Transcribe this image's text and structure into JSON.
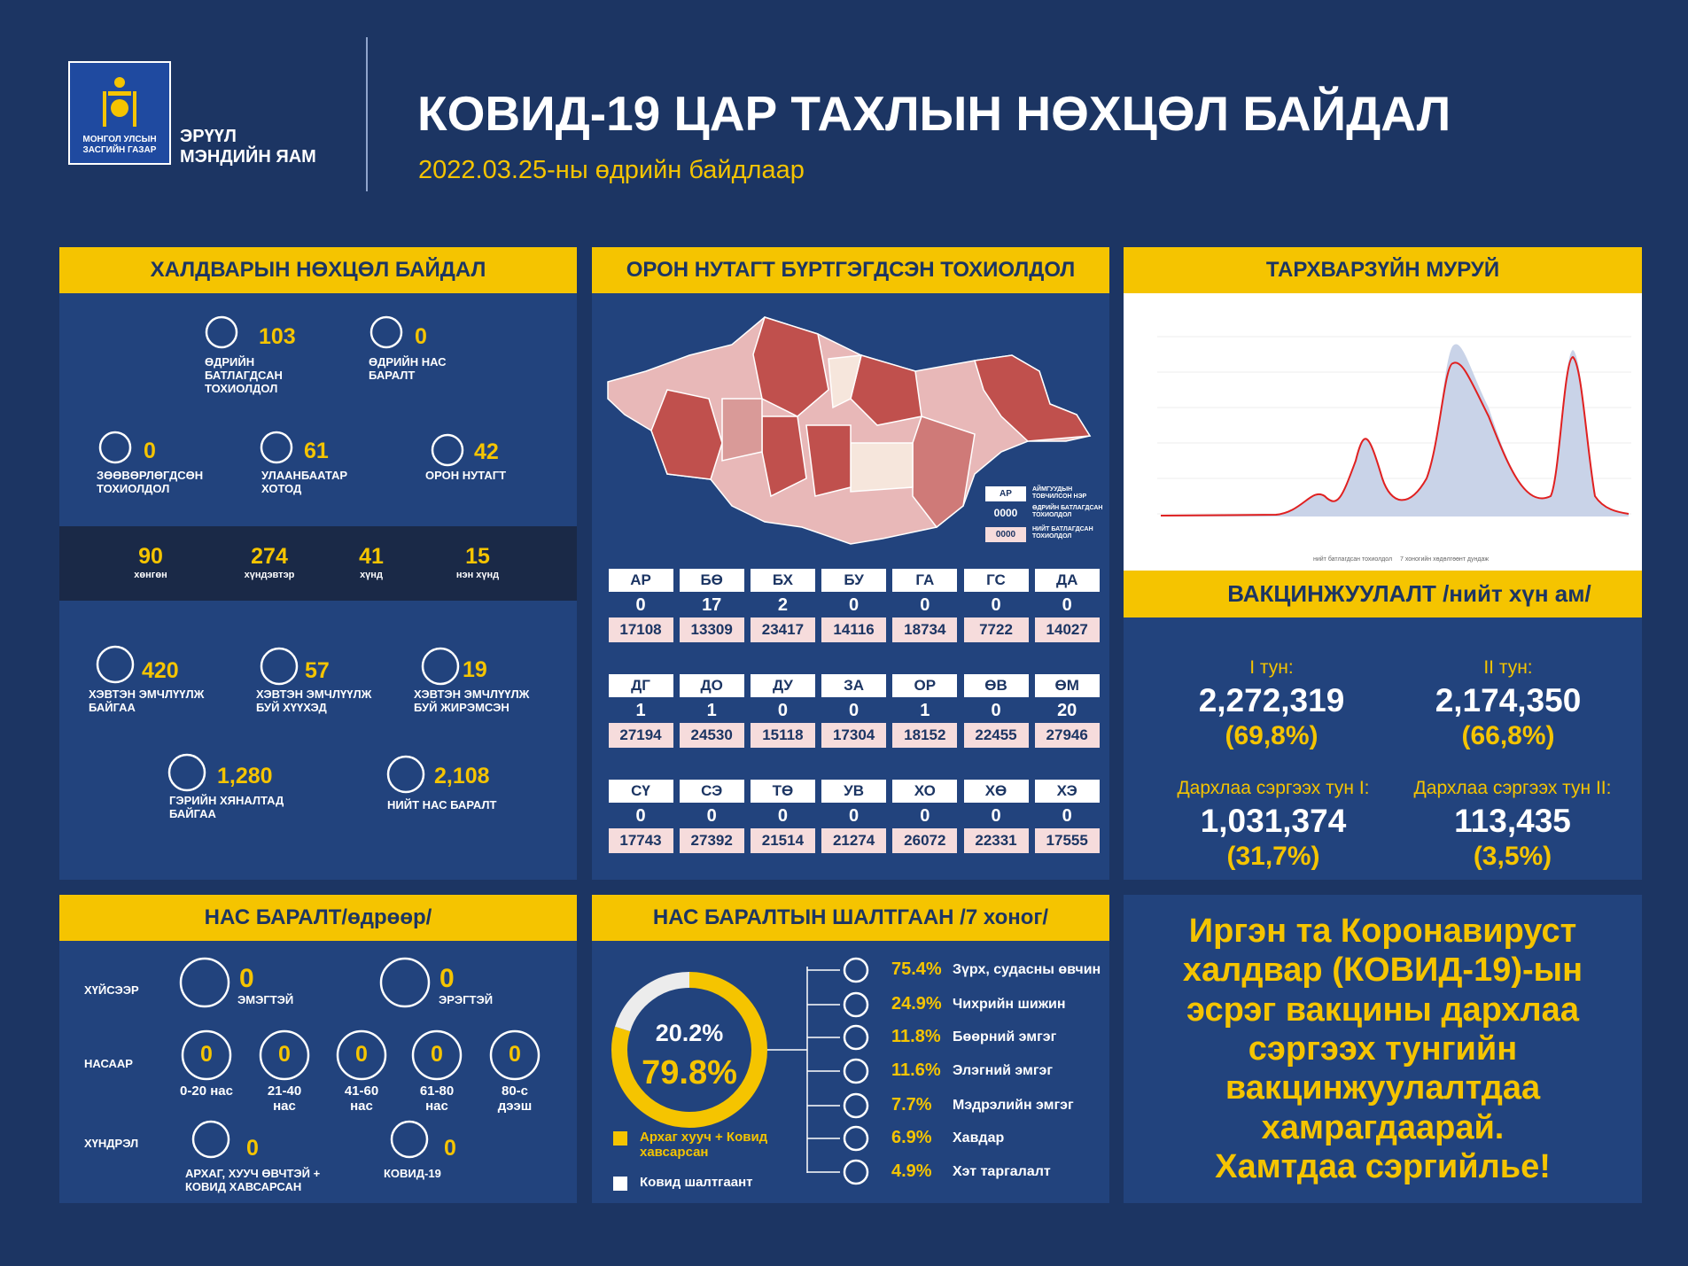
{
  "header": {
    "logo_text": "МОНГОЛ УЛСЫН\nЗАСГИЙН ГАЗАР",
    "ministry": "ЭРҮҮЛ\nМЭНДИЙН ЯАМ",
    "title": "КОВИД-19 ЦАР ТАХЛЫН НӨХЦӨЛ БАЙДАЛ",
    "subtitle": "2022.03.25-ны өдрийн байдлаар"
  },
  "infection": {
    "title": "ХАЛДВАРЫН НӨХЦӨЛ БАЙДАЛ",
    "stats": [
      {
        "value": 103,
        "label": "ӨДРИЙН\nБАТЛАГДСАН\nТОХИОЛДОЛ"
      },
      {
        "value": 0,
        "label": "ӨДРИЙН НАС\nБАРАЛТ"
      },
      {
        "value": 0,
        "label": "ЗӨӨВӨРЛӨГДСӨН\nТОХИОЛДОЛ"
      },
      {
        "value": 61,
        "label": "УЛААНБААТАР\nХОТОД"
      },
      {
        "value": 42,
        "label": "ОРОН НУТАГТ"
      }
    ],
    "severity": [
      {
        "value": 90,
        "label": "хөнгөн"
      },
      {
        "value": 274,
        "label": "хүндэвтэр"
      },
      {
        "value": 41,
        "label": "хүнд"
      },
      {
        "value": 15,
        "label": "нэн хүнд"
      }
    ],
    "care": [
      {
        "value": 420,
        "label": "ХЭВТЭН ЭМЧЛҮҮЛЖ\nБАЙГАА"
      },
      {
        "value": 57,
        "label": "ХЭВТЭН ЭМЧЛҮҮЛЖ\nБУЙ ХҮҮХЭД"
      },
      {
        "value": 19,
        "label": "ХЭВТЭН ЭМЧЛҮҮЛЖ\nБУЙ ЖИРЭМСЭН"
      },
      {
        "value": "1,280",
        "label": "ГЭРИЙН ХЯНАЛТАД\nБАЙГАА"
      },
      {
        "value": "2,108",
        "label": "НИЙТ НАС БАРАЛТ"
      }
    ]
  },
  "provinces": {
    "title": "ОРОН НУТАГТ БҮРТГЭГДСЭН ТОХИОЛДОЛ",
    "legend": {
      "code": "АР",
      "code_label": "АЙМГУУДЫН\nТОВЧИЛСОН НЭР",
      "daily": "0000",
      "daily_label": "ӨДРИЙН БАТЛАГДСАН\nТОХИОЛДОЛ",
      "total": "0000",
      "total_label": "НИЙТ БАТЛАГДСАН\nТОХИОЛДОЛ"
    },
    "rows": [
      [
        {
          "code": "АР",
          "daily": 0,
          "total": 17108
        },
        {
          "code": "БӨ",
          "daily": 17,
          "total": 13309
        },
        {
          "code": "БХ",
          "daily": 2,
          "total": 23417
        },
        {
          "code": "БУ",
          "daily": 0,
          "total": 14116
        },
        {
          "code": "ГА",
          "daily": 0,
          "total": 18734
        },
        {
          "code": "ГС",
          "daily": 0,
          "total": 7722
        },
        {
          "code": "ДА",
          "daily": 0,
          "total": 14027
        }
      ],
      [
        {
          "code": "ДГ",
          "daily": 1,
          "total": 27194
        },
        {
          "code": "ДО",
          "daily": 1,
          "total": 24530
        },
        {
          "code": "ДУ",
          "daily": 0,
          "total": 15118
        },
        {
          "code": "ЗА",
          "daily": 0,
          "total": 17304
        },
        {
          "code": "ОР",
          "daily": 1,
          "total": 18152
        },
        {
          "code": "ӨВ",
          "daily": 0,
          "total": 22455
        },
        {
          "code": "ӨМ",
          "daily": 20,
          "total": 27946
        }
      ],
      [
        {
          "code": "СҮ",
          "daily": 0,
          "total": 17743
        },
        {
          "code": "СЭ",
          "daily": 0,
          "total": 27392
        },
        {
          "code": "ТӨ",
          "daily": 0,
          "total": 21514
        },
        {
          "code": "УВ",
          "daily": 0,
          "total": 21274
        },
        {
          "code": "ХО",
          "daily": 0,
          "total": 26072
        },
        {
          "code": "ХӨ",
          "daily": 0,
          "total": 22331
        },
        {
          "code": "ХЭ",
          "daily": 0,
          "total": 17555
        }
      ]
    ]
  },
  "epi_curve": {
    "title": "ТАРХВАРЗҮЙН МУРУЙ",
    "legend": [
      "нийт батлагдсан тохиолдол",
      "7 хоногийн хөдөлгөөнт дундаж"
    ]
  },
  "vaccination": {
    "title": "ВАКЦИНЖУУЛАЛТ /нийт хүн ам/",
    "doses": [
      {
        "label": "I тун:",
        "value": "2,272,319",
        "percent": "(69,8%)"
      },
      {
        "label": "II тун:",
        "value": "2,174,350",
        "percent": "(66,8%)"
      },
      {
        "label": "Дархлаа сэргээх тун I:",
        "value": "1,031,374",
        "percent": "(31,7%)"
      },
      {
        "label": "Дархлаа сэргээх тун II:",
        "value": "113,435",
        "percent": "(3,5%)"
      }
    ]
  },
  "deaths": {
    "title": "НАС БАРАЛТ/өдрөөр/",
    "gender": {
      "label": "ХҮЙСЭЭР",
      "items": [
        {
          "value": 0,
          "label": "ЭМЭГТЭЙ"
        },
        {
          "value": 0,
          "label": "ЭРЭГТЭЙ"
        }
      ]
    },
    "age": {
      "label": "НАСААР",
      "items": [
        {
          "value": 0,
          "label": "0-20 нас"
        },
        {
          "value": 0,
          "label": "21-40\nнас"
        },
        {
          "value": 0,
          "label": "41-60\nнас"
        },
        {
          "value": 0,
          "label": "61-80\nнас"
        },
        {
          "value": 0,
          "label": "80-с\nдээш"
        }
      ]
    },
    "complication": {
      "label": "ХҮНДРЭЛ",
      "items": [
        {
          "value": 0,
          "label": "АРХАГ, ХУУЧ ӨВЧТЭЙ +\nКОВИД ХАВСАРСАН"
        },
        {
          "value": 0,
          "label": "КОВИД-19"
        }
      ]
    }
  },
  "causes": {
    "title": "НАС БАРАЛТЫН ШАЛТГААН /7 хоног/",
    "donut": {
      "values": [
        20.2,
        79.8
      ],
      "value_labels": [
        "20.2%",
        "79.8%"
      ],
      "colors": [
        "#ececec",
        "#f5c400"
      ]
    },
    "legend": [
      "Архаг хууч + Ковид\nхавсарсан",
      "Ковид шалтгаант"
    ],
    "items": [
      {
        "percent": "75.4%",
        "label": "Зүрх, судасны өвчин"
      },
      {
        "percent": "24.9%",
        "label": "Чихрийн шижин"
      },
      {
        "percent": "11.8%",
        "label": "Бөөрний эмгэг"
      },
      {
        "percent": "11.6%",
        "label": "Элэгний эмгэг"
      },
      {
        "percent": "7.7%",
        "label": "Мэдрэлийн эмгэг"
      },
      {
        "percent": "6.9%",
        "label": "Хавдар"
      },
      {
        "percent": "4.9%",
        "label": "Хэт таргалалт"
      }
    ]
  },
  "message": [
    "Иргэн та Коронавируст",
    "халдвар (КОВИД-19)-ын",
    "эсрэг вакцины дархлаа",
    "сэргээх тунгийн",
    "вакцинжуулалтдаа",
    "хамрагдаарай.",
    "Хамтдаа сэргийлье!"
  ]
}
